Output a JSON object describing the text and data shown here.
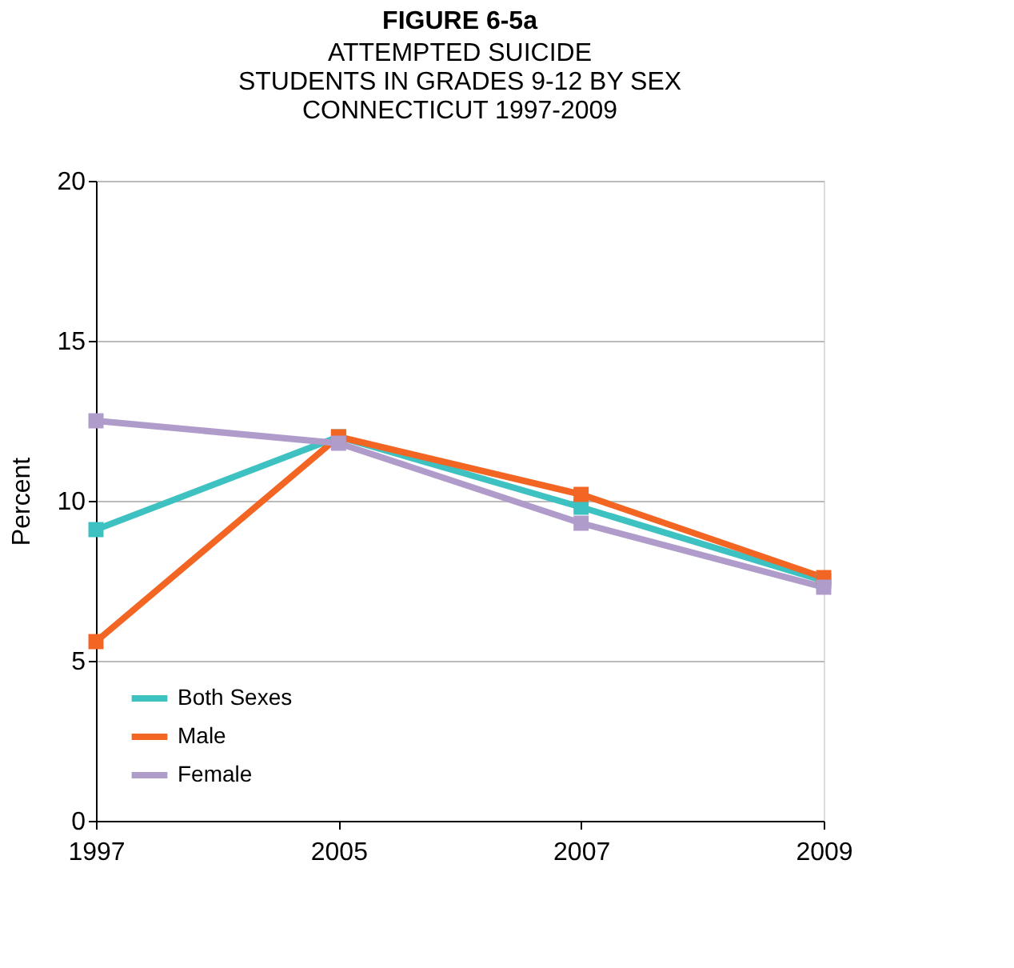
{
  "chart_data": {
    "type": "line",
    "title": "FIGURE 6-5a",
    "subtitle": [
      "ATTEMPTED SUICIDE",
      "STUDENTS IN GRADES 9-12 BY SEX",
      "CONNECTICUT 1997-2009"
    ],
    "ylabel": "Percent",
    "categories": [
      "1997",
      "2005",
      "2007",
      "2009"
    ],
    "series": [
      {
        "name": "Both Sexes",
        "color": "#3ec1c1",
        "values": [
          9.1,
          12.0,
          9.8,
          7.5
        ]
      },
      {
        "name": "Male",
        "color": "#f26522",
        "values": [
          5.6,
          12.0,
          10.2,
          7.6
        ]
      },
      {
        "name": "Female",
        "color": "#b09ccb",
        "values": [
          12.5,
          11.8,
          9.3,
          7.3
        ]
      }
    ],
    "ylim": [
      0,
      20
    ],
    "yticks": [
      0,
      5,
      10,
      15,
      20
    ],
    "grid": "y",
    "legend": "bottom left",
    "marker": "square",
    "line_style": "solid"
  }
}
